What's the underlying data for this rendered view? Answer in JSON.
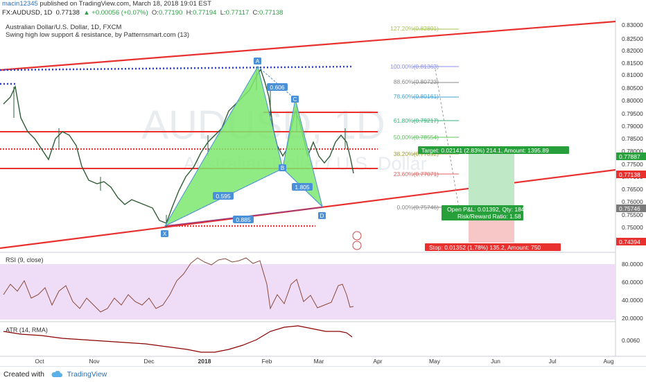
{
  "header": {
    "username": "macin12345",
    "published_text": "published on TradingView.com, March 18, 2018 19:01 EST"
  },
  "quote": {
    "symbol": "FX:AUDUSD, 1D",
    "last": "0.77138",
    "change": "▲ +0.00056 (+0.07%)",
    "open_label": "O:",
    "open": "0.77190",
    "high_label": "H:",
    "high": "0.77194",
    "low_label": "L:",
    "low": "0.77117",
    "close_label": "C:",
    "close": "0.77138"
  },
  "legend": {
    "title": "Australian Dollar/U.S. Dollar, 1D, FXCM",
    "indicator": "Swing high low support & resistance, by Patternsmart.com (13)"
  },
  "watermark": {
    "symbol": "AUDUSD, 1D",
    "name": "Australian Dollar / U.S. Dollar"
  },
  "price_axis": {
    "ticks": [
      "0.83000",
      "0.82500",
      "0.82000",
      "0.81500",
      "0.81000",
      "0.80500",
      "0.80000",
      "0.79500",
      "0.79000",
      "0.78500",
      "0.78000",
      "0.77500",
      "0.77000",
      "0.76500",
      "0.76000",
      "0.75500",
      "0.75000",
      "0.74500"
    ],
    "badges": [
      {
        "value": "0.77887",
        "color": "#27a03b"
      },
      {
        "value": "0.77138",
        "color": "#e8312f"
      },
      {
        "value": "0.75746",
        "color": "#7a7a7a"
      },
      {
        "value": "0.74394",
        "color": "#e8312f"
      }
    ]
  },
  "time_axis": {
    "labels": [
      "Oct",
      "Nov",
      "Dec",
      "2018",
      "Feb",
      "Mar",
      "Apr",
      "May",
      "Jun",
      "Jul",
      "Aug"
    ]
  },
  "fibonacci": [
    {
      "label": "127.20%(0.82891)",
      "color": "#a6c64c"
    },
    {
      "label": "100.00%(0.81363)",
      "color": "#8a8ef0"
    },
    {
      "label": "88.60%(0.80723)",
      "color": "#888888"
    },
    {
      "label": "78.60%(0.80161)",
      "color": "#3fa6d6"
    },
    {
      "label": "61.80%(0.79217)",
      "color": "#34b57a"
    },
    {
      "label": "50.00%(0.78554)",
      "color": "#5cc45c"
    },
    {
      "label": "38.20%(0.77892)",
      "color": "#a0a030"
    },
    {
      "label": "23.60%(0.77071)",
      "color": "#e06060"
    },
    {
      "label": "0.00%(0.75746)",
      "color": "#888888"
    }
  ],
  "pattern": {
    "points": [
      "X",
      "A",
      "B",
      "C",
      "D"
    ],
    "ratios": [
      "0.606",
      "0.595",
      "1.805",
      "0.885"
    ]
  },
  "position": {
    "target": "Target: 0.02141 (2.83%) 214.1, Amount: 1395.89",
    "open_pl": "Open P&L: 0.01392, Qty: 18491",
    "risk_reward": "Risk/Reward Ratio: 1.58",
    "stop": "Stop: 0.01352 (1.78%) 135.2, Amount: 750"
  },
  "rsi": {
    "title": "RSI (9, close)",
    "ticks": [
      "80.0000",
      "60.0000",
      "40.0000",
      "20.0000"
    ]
  },
  "atr": {
    "title": "ATR (14, RMA)",
    "ticks": [
      "0.0060"
    ]
  },
  "footer": {
    "created_with": "Created with",
    "brand": "TradingView"
  }
}
